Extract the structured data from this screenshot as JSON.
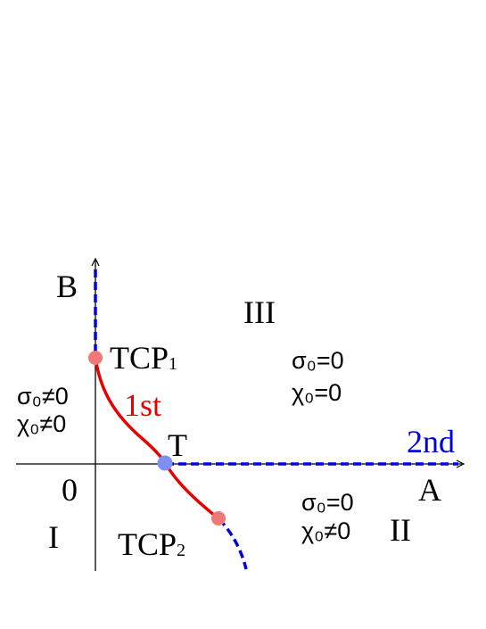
{
  "axes": {
    "x_label": "A",
    "y_label": "B",
    "origin_label": "0"
  },
  "regions": {
    "I": "I",
    "II": "II",
    "III": "III"
  },
  "points": {
    "tcp1": "TCP",
    "tcp1_sub": "1",
    "tcp2": "TCP",
    "tcp2_sub": "2",
    "t": "T"
  },
  "transitions": {
    "first_order": "1st",
    "second_order": "2nd"
  },
  "conditions": {
    "region1": {
      "sigma": "σ₀≠0",
      "chi": "χ₀≠0"
    },
    "region2": {
      "sigma": "σ₀=0",
      "chi": "χ₀≠0"
    },
    "region3": {
      "sigma": "σ₀=0",
      "chi": "χ₀=0"
    }
  },
  "colors": {
    "first_order_line": "#e60000",
    "second_order_line": "#0000dd",
    "tcp_point": "#f07878",
    "t_point": "#7f8ff0",
    "axis": "#000000"
  }
}
